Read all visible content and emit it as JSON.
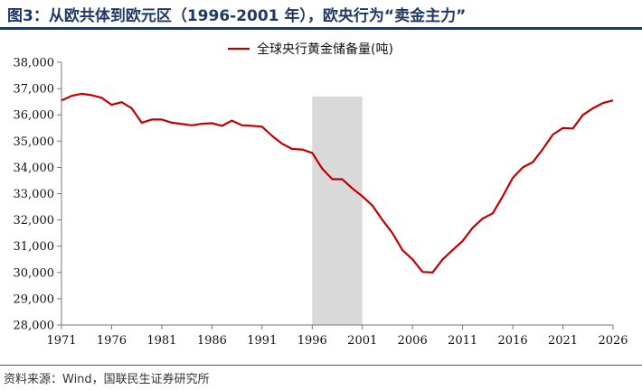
{
  "figure_title": "图3：从欧共体到欧元区（1996-2001 年），欧央行为“卖金主力”",
  "source_note": "资料来源：Wind，国联民生证券研究所",
  "colors": {
    "title": "#1f3864",
    "line": "#c00000",
    "shade": "#d9d9d9"
  },
  "chart_data": {
    "type": "line",
    "title": "",
    "xlabel": "",
    "ylabel": "",
    "xlim": [
      1971,
      2026
    ],
    "ylim": [
      28000,
      38000
    ],
    "x_ticks": [
      1971,
      1976,
      1981,
      1986,
      1991,
      1996,
      2001,
      2006,
      2011,
      2016,
      2021,
      2026
    ],
    "x_tick_labels": [
      "1971",
      "1976",
      "1981",
      "1986",
      "1991",
      "1996",
      "2001",
      "2006",
      "2011",
      "2016",
      "2021",
      "2026"
    ],
    "y_ticks": [
      28000,
      29000,
      30000,
      31000,
      32000,
      33000,
      34000,
      35000,
      36000,
      37000,
      38000
    ],
    "y_tick_labels": [
      "28,000",
      "29,000",
      "30,000",
      "31,000",
      "32,000",
      "33,000",
      "34,000",
      "35,000",
      "36,000",
      "37,000",
      "38,000"
    ],
    "grid": false,
    "legend_position": "top-center",
    "shaded_range": [
      1996,
      2001
    ],
    "series": [
      {
        "name": "全球央行黄金储备量(吨)",
        "x": [
          1971,
          1972,
          1973,
          1974,
          1975,
          1976,
          1977,
          1978,
          1979,
          1980,
          1981,
          1982,
          1983,
          1984,
          1985,
          1986,
          1987,
          1988,
          1989,
          1990,
          1991,
          1992,
          1993,
          1994,
          1995,
          1996,
          1997,
          1998,
          1999,
          2000,
          2001,
          2002,
          2003,
          2004,
          2005,
          2006,
          2007,
          2008,
          2009,
          2010,
          2011,
          2012,
          2013,
          2014,
          2015,
          2016,
          2017,
          2018,
          2019,
          2020,
          2021,
          2022,
          2023,
          2024,
          2025,
          2026
        ],
        "values": [
          36550,
          36720,
          36800,
          36750,
          36650,
          36380,
          36480,
          36250,
          35700,
          35820,
          35820,
          35700,
          35650,
          35600,
          35660,
          35680,
          35580,
          35780,
          35600,
          35580,
          35550,
          35200,
          34900,
          34700,
          34680,
          34550,
          33950,
          33550,
          33550,
          33200,
          32900,
          32550,
          32000,
          31500,
          30850,
          30500,
          30020,
          30000,
          30500,
          30850,
          31200,
          31700,
          32050,
          32250,
          32900,
          33600,
          34000,
          34200,
          34700,
          35250,
          35500,
          35480,
          36000,
          36250,
          36450,
          36550
        ]
      }
    ]
  }
}
